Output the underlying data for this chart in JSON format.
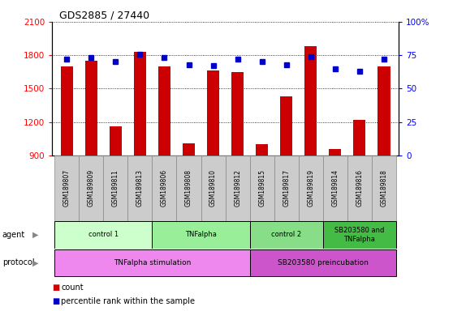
{
  "title": "GDS2885 / 27440",
  "samples": [
    "GSM189807",
    "GSM189809",
    "GSM189811",
    "GSM189813",
    "GSM189806",
    "GSM189808",
    "GSM189810",
    "GSM189812",
    "GSM189815",
    "GSM189817",
    "GSM189819",
    "GSM189814",
    "GSM189816",
    "GSM189818"
  ],
  "counts": [
    1700,
    1750,
    1160,
    1830,
    1700,
    1010,
    1660,
    1650,
    1000,
    1430,
    1880,
    960,
    1220,
    1700
  ],
  "percentiles": [
    72,
    73,
    70,
    76,
    73,
    68,
    67,
    72,
    70,
    68,
    74,
    65,
    63,
    72
  ],
  "ylim_left": [
    900,
    2100
  ],
  "ylim_right": [
    0,
    100
  ],
  "yticks_left": [
    900,
    1200,
    1500,
    1800,
    2100
  ],
  "yticks_right": [
    0,
    25,
    50,
    75,
    100
  ],
  "bar_color": "#cc0000",
  "marker_color": "#0000cc",
  "sample_bg": "#cccccc",
  "agent_groups": [
    {
      "label": "control 1",
      "start": 0,
      "end": 3,
      "color": "#ccffcc"
    },
    {
      "label": "TNFalpha",
      "start": 4,
      "end": 7,
      "color": "#99ee99"
    },
    {
      "label": "control 2",
      "start": 8,
      "end": 10,
      "color": "#88dd88"
    },
    {
      "label": "SB203580 and\nTNFalpha",
      "start": 11,
      "end": 13,
      "color": "#44bb44"
    }
  ],
  "protocol_groups": [
    {
      "label": "TNFalpha stimulation",
      "start": 0,
      "end": 7,
      "color": "#ee88ee"
    },
    {
      "label": "SB203580 preincubation",
      "start": 8,
      "end": 13,
      "color": "#cc55cc"
    }
  ]
}
